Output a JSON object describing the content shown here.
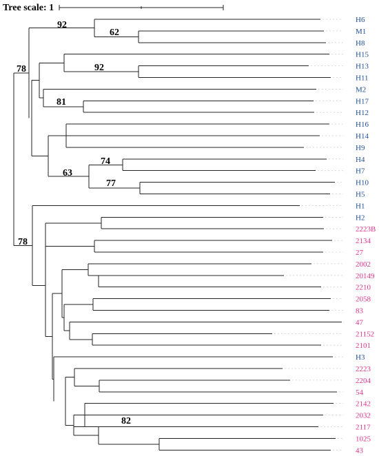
{
  "scale": {
    "label": "Tree scale: 1"
  },
  "colors": {
    "group_a": "#1f4e9a",
    "group_b": "#e0338c",
    "branch": "#222222"
  },
  "support_values": [
    "92",
    "62",
    "78",
    "92",
    "81",
    "74",
    "63",
    "77",
    "78",
    "82"
  ],
  "leaves": [
    {
      "label": "H6",
      "group": "group_a"
    },
    {
      "label": "M1",
      "group": "group_a"
    },
    {
      "label": "H8",
      "group": "group_a"
    },
    {
      "label": "H15",
      "group": "group_a"
    },
    {
      "label": "H13",
      "group": "group_a"
    },
    {
      "label": "H11",
      "group": "group_a"
    },
    {
      "label": "M2",
      "group": "group_a"
    },
    {
      "label": "H17",
      "group": "group_a"
    },
    {
      "label": "H12",
      "group": "group_a"
    },
    {
      "label": "H16",
      "group": "group_a"
    },
    {
      "label": "H14",
      "group": "group_a"
    },
    {
      "label": "H9",
      "group": "group_a"
    },
    {
      "label": "H4",
      "group": "group_a"
    },
    {
      "label": "H7",
      "group": "group_a"
    },
    {
      "label": "H10",
      "group": "group_a"
    },
    {
      "label": "H5",
      "group": "group_a"
    },
    {
      "label": "H1",
      "group": "group_a"
    },
    {
      "label": "H2",
      "group": "group_a"
    },
    {
      "label": "2223B",
      "group": "group_b"
    },
    {
      "label": "2134",
      "group": "group_b"
    },
    {
      "label": "27",
      "group": "group_b"
    },
    {
      "label": "2002",
      "group": "group_b"
    },
    {
      "label": "20149",
      "group": "group_b"
    },
    {
      "label": "2210",
      "group": "group_b"
    },
    {
      "label": "2058",
      "group": "group_b"
    },
    {
      "label": "83",
      "group": "group_b"
    },
    {
      "label": "47",
      "group": "group_b"
    },
    {
      "label": "21152",
      "group": "group_b"
    },
    {
      "label": "2101",
      "group": "group_b"
    },
    {
      "label": "H3",
      "group": "group_a"
    },
    {
      "label": "2223",
      "group": "group_b"
    },
    {
      "label": "2204",
      "group": "group_b"
    },
    {
      "label": "54",
      "group": "group_b"
    },
    {
      "label": "2142",
      "group": "group_b"
    },
    {
      "label": "2032",
      "group": "group_b"
    },
    {
      "label": "2117",
      "group": "group_b"
    },
    {
      "label": "1025",
      "group": "group_b"
    },
    {
      "label": "43",
      "group": "group_b"
    }
  ]
}
